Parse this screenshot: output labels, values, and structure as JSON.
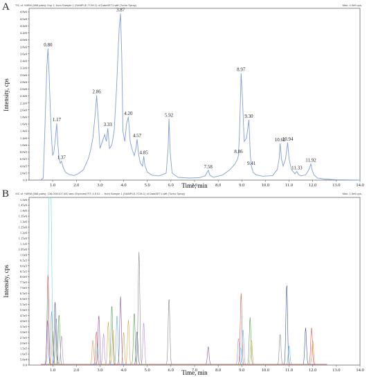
{
  "panels": {
    "a": {
      "letter": "A",
      "header_left": "TIC of +MRM (588 pairs): Exp 1, from Sample 1 (SAMPLE-TCM-1) of DataSET1.wiff (Turbo Spray)",
      "header_right": "Max. 4.9e6 cps.",
      "xlabel": "Time, min",
      "ylabel": "Intensity, cps"
    },
    "b": {
      "letter": "B",
      "header_left": "XIC of +MRM (588 pairs): 136.000/107.000 amu Expected RT: 4.5 ID: ... from Sample 1 (SAMPLE-TCM-1) of DataSET1.wiff (Turbo Spray)",
      "header_right": "Max. 1.5e6 cps.",
      "xlabel": "Time, min",
      "ylabel": "Intensity, cps"
    }
  },
  "chart_data": [
    {
      "type": "line",
      "panel": "A",
      "xlabel": "Time, min",
      "ylabel": "Intensity, cps",
      "xlim": [
        0,
        14
      ],
      "ylim": [
        0,
        4900000.0
      ],
      "x_ticks": [
        "1.0",
        "2.0",
        "3.0",
        "4.0",
        "5.0",
        "6.0",
        "7.0",
        "8.0",
        "9.0",
        "10.0",
        "11.0",
        "12.0",
        "13.0",
        "14.0"
      ],
      "y_ticks": [
        {
          "v": 0,
          "label": "0.0"
        },
        {
          "v": 200000.0,
          "label": "2.0e5"
        },
        {
          "v": 400000.0,
          "label": "4.0e5"
        },
        {
          "v": 600000.0,
          "label": "6.0e5"
        },
        {
          "v": 800000.0,
          "label": "8.0e5"
        },
        {
          "v": 1000000.0,
          "label": "1.0e6"
        },
        {
          "v": 1200000.0,
          "label": "1.2e6"
        },
        {
          "v": 1400000.0,
          "label": "1.4e6"
        },
        {
          "v": 1600000.0,
          "label": "1.6e6"
        },
        {
          "v": 1800000.0,
          "label": "1.8e6"
        },
        {
          "v": 2000000.0,
          "label": "2.0e6"
        },
        {
          "v": 2200000.0,
          "label": "2.2e6"
        },
        {
          "v": 2400000.0,
          "label": "2.4e6"
        },
        {
          "v": 2600000.0,
          "label": "2.6e6"
        },
        {
          "v": 2800000.0,
          "label": "2.8e6"
        },
        {
          "v": 3000000.0,
          "label": "3.0e6"
        },
        {
          "v": 3200000.0,
          "label": "3.2e6"
        },
        {
          "v": 3400000.0,
          "label": "3.4e6"
        },
        {
          "v": 3600000.0,
          "label": "3.6e6"
        },
        {
          "v": 3800000.0,
          "label": "3.8e6"
        },
        {
          "v": 4000000.0,
          "label": "4.0e6"
        },
        {
          "v": 4200000.0,
          "label": "4.2e6"
        },
        {
          "v": 4400000.0,
          "label": "4.4e6"
        },
        {
          "v": 4600000.0,
          "label": "4.6e6"
        },
        {
          "v": 4800000.0,
          "label": "4.8e6"
        }
      ],
      "color": "#7f9fd4",
      "peak_labels": [
        {
          "rt": "0.80",
          "x": 0.8,
          "y": 3750000.0
        },
        {
          "rt": "1.17",
          "x": 1.17,
          "y": 1620000.0
        },
        {
          "rt": "1.37",
          "x": 1.37,
          "y": 540000.0
        },
        {
          "rt": "2.86",
          "x": 2.86,
          "y": 2420000.0
        },
        {
          "rt": "3.33",
          "x": 3.33,
          "y": 1480000.0
        },
        {
          "rt": "3.87",
          "x": 3.87,
          "y": 4750000.0
        },
        {
          "rt": "4.20",
          "x": 4.2,
          "y": 1800000.0
        },
        {
          "rt": "4.57",
          "x": 4.57,
          "y": 1170000.0
        },
        {
          "rt": "4.85",
          "x": 4.85,
          "y": 680000.0
        },
        {
          "rt": "5.92",
          "x": 5.92,
          "y": 1750000.0
        },
        {
          "rt": "7.58",
          "x": 7.58,
          "y": 280000.0
        },
        {
          "rt": "8.86",
          "x": 8.86,
          "y": 710000.0
        },
        {
          "rt": "8.97",
          "x": 8.97,
          "y": 3050000.0
        },
        {
          "rt": "9.30",
          "x": 9.3,
          "y": 1720000.0
        },
        {
          "rt": "9.41",
          "x": 9.41,
          "y": 380000.0
        },
        {
          "rt": "10.62",
          "x": 10.62,
          "y": 1050000.0
        },
        {
          "rt": "10.94",
          "x": 10.94,
          "y": 1070000.0
        },
        {
          "rt": "11.33",
          "x": 11.33,
          "y": 250000.0
        },
        {
          "rt": "11.92",
          "x": 11.92,
          "y": 460000.0
        }
      ],
      "x": [
        0.5,
        0.6,
        0.7,
        0.75,
        0.8,
        0.85,
        0.9,
        0.95,
        1.0,
        1.05,
        1.1,
        1.17,
        1.22,
        1.27,
        1.32,
        1.37,
        1.45,
        1.55,
        1.7,
        1.9,
        2.1,
        2.3,
        2.5,
        2.6,
        2.7,
        2.8,
        2.86,
        2.92,
        3.0,
        3.1,
        3.2,
        3.27,
        3.33,
        3.4,
        3.5,
        3.6,
        3.7,
        3.78,
        3.82,
        3.87,
        3.92,
        3.97,
        4.05,
        4.12,
        4.2,
        4.28,
        4.35,
        4.45,
        4.52,
        4.57,
        4.63,
        4.7,
        4.8,
        4.85,
        4.9,
        5.0,
        5.2,
        5.5,
        5.8,
        5.88,
        5.92,
        5.97,
        6.05,
        6.3,
        6.8,
        7.2,
        7.45,
        7.58,
        7.65,
        7.8,
        8.2,
        8.5,
        8.7,
        8.82,
        8.86,
        8.91,
        8.97,
        9.03,
        9.1,
        9.2,
        9.3,
        9.36,
        9.41,
        9.48,
        9.6,
        9.9,
        10.3,
        10.5,
        10.58,
        10.62,
        10.68,
        10.75,
        10.85,
        10.94,
        11.0,
        11.1,
        11.25,
        11.33,
        11.4,
        11.5,
        11.7,
        11.8,
        11.87,
        11.92,
        11.97,
        12.05,
        12.2,
        12.5,
        13.0,
        14.0
      ],
      "y": [
        0,
        60000.0,
        2100000.0,
        3200000.0,
        3750000.0,
        3000000.0,
        2000000.0,
        1200000.0,
        700000.0,
        800000.0,
        1100000.0,
        1620000.0,
        1000000.0,
        600000.0,
        480000.0,
        540000.0,
        350000.0,
        220000.0,
        160000.0,
        130000.0,
        190000.0,
        300000.0,
        600000.0,
        850000.0,
        1200000.0,
        1900000.0,
        2420000.0,
        1800000.0,
        900000.0,
        1100000.0,
        1300000.0,
        1100000.0,
        1480000.0,
        900000.0,
        1000000.0,
        1400000.0,
        2600000.0,
        3900000.0,
        4400000.0,
        4750000.0,
        3600000.0,
        1400000.0,
        1100000.0,
        1600000.0,
        1800000.0,
        1100000.0,
        900000.0,
        700000.0,
        900000.0,
        1170000.0,
        750000.0,
        500000.0,
        400000.0,
        680000.0,
        420000.0,
        230000.0,
        140000.0,
        120000.0,
        200000.0,
        900000.0,
        1750000.0,
        800000.0,
        200000.0,
        80000.0,
        60000.0,
        70000.0,
        120000.0,
        280000.0,
        140000.0,
        80000.0,
        150000.0,
        300000.0,
        450000.0,
        600000.0,
        710000.0,
        1500000.0,
        3050000.0,
        2300000.0,
        1100000.0,
        1200000.0,
        1720000.0,
        700000.0,
        380000.0,
        220000.0,
        150000.0,
        110000.0,
        130000.0,
        300000.0,
        600000.0,
        1050000.0,
        600000.0,
        400000.0,
        600000.0,
        1070000.0,
        600000.0,
        300000.0,
        180000.0,
        250000.0,
        160000.0,
        120000.0,
        150000.0,
        250000.0,
        360000.0,
        460000.0,
        300000.0,
        150000.0,
        60000.0,
        30000.0,
        10000.0,
        0
      ]
    },
    {
      "type": "line",
      "panel": "B",
      "xlabel": "Time, min",
      "ylabel": "Intensity, cps",
      "xlim": [
        0,
        14
      ],
      "ylim": [
        0,
        1520000.0
      ],
      "x_ticks": [
        "1.0",
        "2.0",
        "3.0",
        "4.0",
        "5.0",
        "6.0",
        "7.0",
        "8.0",
        "9.0",
        "10.0",
        "11.0",
        "12.0",
        "13.0",
        "14.0"
      ],
      "y_ticks": [
        {
          "v": 0,
          "label": "0.0"
        },
        {
          "v": 50000.0,
          "label": "5.0e4"
        },
        {
          "v": 100000.0,
          "label": "1.0e5"
        },
        {
          "v": 150000.0,
          "label": "1.5e5"
        },
        {
          "v": 200000.0,
          "label": "2.0e5"
        },
        {
          "v": 250000.0,
          "label": "2.5e5"
        },
        {
          "v": 300000.0,
          "label": "3.0e5"
        },
        {
          "v": 350000.0,
          "label": "3.5e5"
        },
        {
          "v": 400000.0,
          "label": "4.0e5"
        },
        {
          "v": 450000.0,
          "label": "4.5e5"
        },
        {
          "v": 500000.0,
          "label": "5.0e5"
        },
        {
          "v": 550000.0,
          "label": "5.5e5"
        },
        {
          "v": 600000.0,
          "label": "6.0e5"
        },
        {
          "v": 650000.0,
          "label": "6.5e5"
        },
        {
          "v": 700000.0,
          "label": "7.0e5"
        },
        {
          "v": 750000.0,
          "label": "7.5e5"
        },
        {
          "v": 800000.0,
          "label": "8.0e5"
        },
        {
          "v": 850000.0,
          "label": "8.5e5"
        },
        {
          "v": 900000.0,
          "label": "9.0e5"
        },
        {
          "v": 950000.0,
          "label": "9.5e5"
        },
        {
          "v": 1000000.0,
          "label": "1.0e6"
        },
        {
          "v": 1050000.0,
          "label": "1.05e6"
        },
        {
          "v": 1100000.0,
          "label": "1.1e6"
        },
        {
          "v": 1150000.0,
          "label": "1.15e6"
        },
        {
          "v": 1200000.0,
          "label": "1.2e6"
        },
        {
          "v": 1250000.0,
          "label": "1.25e6"
        },
        {
          "v": 1300000.0,
          "label": "1.3e6"
        },
        {
          "v": 1350000.0,
          "label": "1.35e6"
        },
        {
          "v": 1400000.0,
          "label": "1.4e6"
        },
        {
          "v": 1450000.0,
          "label": "1.45e6"
        },
        {
          "v": 1500000.0,
          "label": "1.5e6"
        }
      ],
      "series": [
        {
          "color": "#59d3d8",
          "peaks": [
            [
              0.85,
              1500000.0
            ],
            [
              0.93,
              1400000.0
            ],
            [
              2.9,
              200000.0
            ],
            [
              8.95,
              150000.0
            ]
          ]
        },
        {
          "color": "#d94545",
          "peaks": [
            [
              0.8,
              820000.0
            ],
            [
              2.85,
              300000.0
            ],
            [
              8.97,
              650000.0
            ],
            [
              11.95,
              340000.0
            ]
          ]
        },
        {
          "color": "#2b3f8f",
          "peaks": [
            [
              1.1,
              570000.0
            ],
            [
              4.57,
              300000.0
            ],
            [
              10.9,
              730000.0
            ],
            [
              11.7,
              330000.0
            ]
          ]
        },
        {
          "color": "#3f8f3f",
          "peaks": [
            [
              1.27,
              460000.0
            ],
            [
              3.5,
              540000.0
            ],
            [
              4.45,
              470000.0
            ],
            [
              9.35,
              430000.0
            ]
          ]
        },
        {
          "color": "#8a3f8f",
          "peaks": [
            [
              0.78,
              400000.0
            ],
            [
              2.95,
              450000.0
            ],
            [
              3.87,
              620000.0
            ],
            [
              7.58,
              160000.0
            ]
          ]
        },
        {
          "color": "#c8a232",
          "peaks": [
            [
              1.0,
              300000.0
            ],
            [
              3.35,
              390000.0
            ],
            [
              4.2,
              410000.0
            ],
            [
              9.41,
              220000.0
            ]
          ]
        },
        {
          "color": "#7a7a7a",
          "peaks": [
            [
              1.15,
              420000.0
            ],
            [
              4.65,
              1020000.0
            ],
            [
              5.92,
              600000.0
            ],
            [
              10.62,
              280000.0
            ]
          ]
        },
        {
          "color": "#4fa8d8",
          "peaks": [
            [
              0.95,
              480000.0
            ],
            [
              3.72,
              450000.0
            ],
            [
              9.05,
              320000.0
            ],
            [
              11.0,
              170000.0
            ]
          ]
        },
        {
          "color": "#b07ad0",
          "peaks": [
            [
              1.37,
              260000.0
            ],
            [
              3.15,
              280000.0
            ],
            [
              4.85,
              380000.0
            ],
            [
              8.86,
              240000.0
            ]
          ]
        },
        {
          "color": "#e08c3a",
          "peaks": [
            [
              2.7,
              220000.0
            ],
            [
              3.55,
              320000.0
            ],
            [
              4.0,
              300000.0
            ],
            [
              12.0,
              220000.0
            ]
          ]
        }
      ]
    }
  ]
}
